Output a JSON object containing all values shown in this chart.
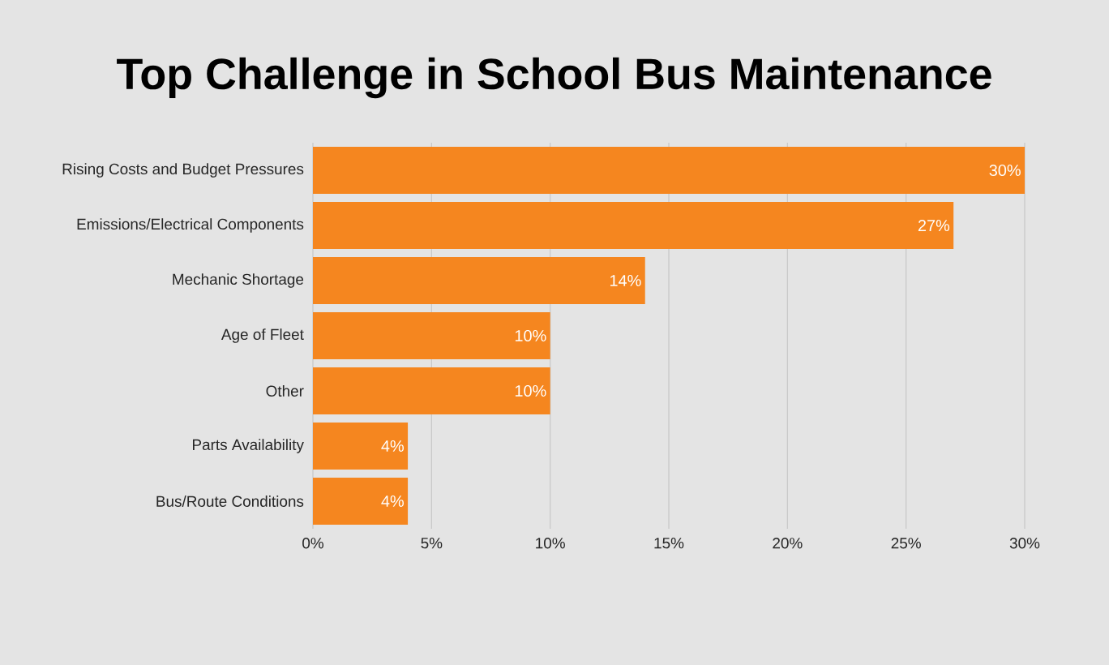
{
  "chart_data": {
    "type": "bar",
    "orientation": "horizontal",
    "title": "Top Challenge in School Bus Maintenance",
    "categories": [
      "Rising Costs and Budget Pressures",
      "Emissions/Electrical Components",
      "Mechanic Shortage",
      "Age of Fleet",
      "Other",
      "Parts Availability",
      "Bus/Route Conditions"
    ],
    "values": [
      30,
      27,
      14,
      10,
      10,
      4,
      4
    ],
    "value_labels": [
      "30%",
      "27%",
      "14%",
      "10%",
      "10%",
      "4%",
      "4%"
    ],
    "color": "#f5861f",
    "xlim": [
      0,
      30
    ],
    "xticks": [
      {
        "value": 0,
        "label": "0%"
      },
      {
        "value": 5,
        "label": "5%"
      },
      {
        "value": 10,
        "label": "10%"
      },
      {
        "value": 15,
        "label": "15%"
      },
      {
        "value": 20,
        "label": "20%"
      },
      {
        "value": 25,
        "label": "25%"
      },
      {
        "value": 30,
        "label": "30%"
      }
    ],
    "grid": "x"
  }
}
